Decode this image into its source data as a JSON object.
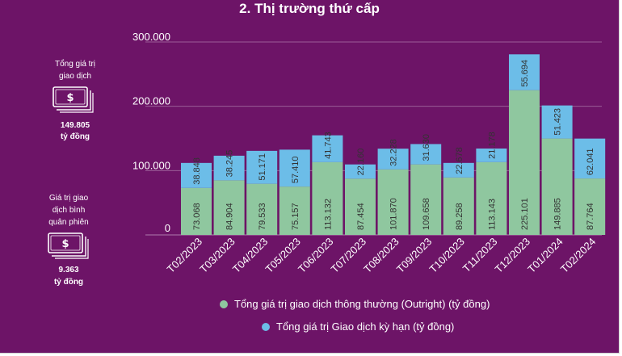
{
  "title": "2. Thị trường thứ cấp",
  "side_stats": [
    {
      "label": "Tổng giá trị\ngiao dịch",
      "value": "149.805",
      "unit": "tỷ đồng",
      "icon": "money-icon"
    },
    {
      "label": "Giá trị giao\ndịch bình\nquân phiên",
      "value": "9.363",
      "unit": "tỷ đồng",
      "icon": "money-icon"
    }
  ],
  "colors": {
    "background": "#6d1467",
    "outright": "#8fc79f",
    "term": "#6cbde8",
    "text": "#ffffff",
    "grid": "#9a5c97"
  },
  "chart_data": {
    "type": "bar",
    "stacked": true,
    "title": "2. Thị trường thứ cấp",
    "categories": [
      "T02/2023",
      "T03/2023",
      "T04/2023",
      "T05/2023",
      "T06/2023",
      "T07/2023",
      "T08/2023",
      "T09/2023",
      "T10/2023",
      "T11/2023",
      "T12/2023",
      "T01/2024",
      "T02/2024"
    ],
    "series": [
      {
        "name": "Tổng giá trị giao dịch thông thường (Outright) (tỷ đồng)",
        "values": [
          73068,
          84904,
          79533,
          75157,
          113132,
          87454,
          101870,
          109658,
          89258,
          113143,
          225101,
          149885,
          87764
        ],
        "labels": [
          "73.068",
          "84.904",
          "79.533",
          "75.157",
          "113.132",
          "87.454",
          "101.870",
          "109.658",
          "89.258",
          "113.143",
          "225.101",
          "149.885",
          "87.764"
        ]
      },
      {
        "name": "Tổng giá trị Giao dịch kỳ hạn (tỷ đồng)",
        "values": [
          38848,
          38245,
          51171,
          57410,
          41743,
          22160,
          32228,
          31630,
          22678,
          21178,
          55694,
          51423,
          62041
        ],
        "labels": [
          "38.848",
          "38.245",
          "51.171",
          "57.410",
          "41.743",
          "22.160",
          "32.228",
          "31.630",
          "22.678",
          "21.178",
          "55.694",
          "51.423",
          "62.041"
        ]
      }
    ],
    "yticks": [
      0,
      100000,
      200000,
      300000
    ],
    "ytick_labels": [
      "0",
      "100.000",
      "200.000",
      "300.000"
    ],
    "ylim": [
      0,
      300000
    ],
    "xlabel": "",
    "ylabel": "",
    "legend_position": "bottom"
  }
}
